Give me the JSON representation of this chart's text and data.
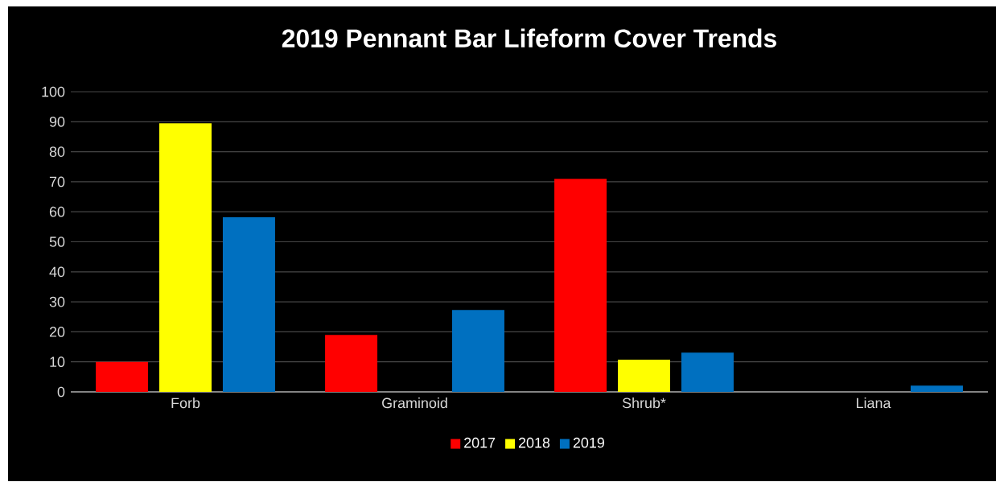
{
  "chart_data": {
    "type": "bar",
    "title": "2019 Pennant Bar Lifeform Cover Trends",
    "categories": [
      "Forb",
      "Graminoid",
      "Shrub*",
      "Liana"
    ],
    "series": [
      {
        "name": "2017",
        "color": "#ff0000",
        "values": [
          10,
          19,
          71,
          0
        ]
      },
      {
        "name": "2018",
        "color": "#ffff00",
        "values": [
          89.5,
          0,
          10.7,
          0
        ]
      },
      {
        "name": "2019",
        "color": "#0070c0",
        "values": [
          58.2,
          27.3,
          13.1,
          2.1
        ]
      }
    ],
    "ylim": [
      0,
      100
    ],
    "yticks": [
      0,
      10,
      20,
      30,
      40,
      50,
      60,
      70,
      80,
      90,
      100
    ],
    "grid": "y",
    "legend": "bottom"
  }
}
